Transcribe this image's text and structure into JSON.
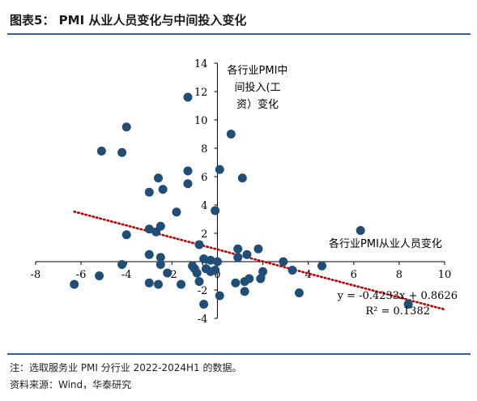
{
  "figure": {
    "title": "图表5： PMI 从业人员变化与中间投入变化"
  },
  "chart_data": {
    "type": "scatter",
    "xlim": [
      -8,
      10
    ],
    "ylim": [
      -4,
      14
    ],
    "x_ticks": [
      -8,
      -6,
      -4,
      -2,
      0,
      2,
      4,
      6,
      8,
      10
    ],
    "y_ticks": [
      -4,
      -2,
      0,
      2,
      4,
      6,
      8,
      10,
      12,
      14
    ],
    "grid": false,
    "ylabel": "各行业PMI中间投入(工资）变化",
    "ylabel_lines": [
      "各行业PMI中",
      "间投入(工",
      "资）变化"
    ],
    "xlabel": "各行业PMI从业人员变化",
    "colors": {
      "points": "#1f4e79",
      "trend": "#c00000"
    },
    "trendline": {
      "slope": -0.4233,
      "intercept": 0.8626,
      "x_range": [
        -6.3,
        10
      ]
    },
    "annotations": {
      "equation": "y = -0.4233x + 0.8626",
      "r_squared": "R² = 0.1382"
    },
    "points": [
      [
        -6.3,
        -1.6
      ],
      [
        -5.2,
        -1.0
      ],
      [
        -5.1,
        7.8
      ],
      [
        -4.2,
        7.7
      ],
      [
        -4.0,
        9.5
      ],
      [
        -4.2,
        -0.2
      ],
      [
        -4.0,
        1.9
      ],
      [
        -3.0,
        2.3
      ],
      [
        -3.0,
        4.9
      ],
      [
        -2.6,
        5.9
      ],
      [
        -2.4,
        5.1
      ],
      [
        -2.5,
        2.5
      ],
      [
        -2.7,
        2.1
      ],
      [
        -3.0,
        0.5
      ],
      [
        -2.5,
        0.3
      ],
      [
        -2.5,
        -0.2
      ],
      [
        -3.0,
        -1.5
      ],
      [
        -2.6,
        -1.6
      ],
      [
        -2.2,
        -0.8
      ],
      [
        -1.8,
        3.5
      ],
      [
        -1.3,
        11.6
      ],
      [
        -1.3,
        6.4
      ],
      [
        -1.3,
        5.5
      ],
      [
        -0.8,
        1.2
      ],
      [
        -0.6,
        0.2
      ],
      [
        -0.3,
        0.1
      ],
      [
        -1.6,
        -1.6
      ],
      [
        -1.1,
        -0.3
      ],
      [
        -1.0,
        -0.5
      ],
      [
        -0.9,
        -0.8
      ],
      [
        -0.8,
        -1.4
      ],
      [
        -0.6,
        -3.0
      ],
      [
        -0.5,
        -0.5
      ],
      [
        -0.3,
        -0.7
      ],
      [
        -0.1,
        -0.6
      ],
      [
        0.0,
        0.0
      ],
      [
        -0.1,
        3.6
      ],
      [
        0.1,
        6.5
      ],
      [
        0.6,
        9.0
      ],
      [
        0.1,
        -2.4
      ],
      [
        0.8,
        -1.5
      ],
      [
        1.1,
        5.9
      ],
      [
        0.9,
        0.9
      ],
      [
        0.9,
        0.3
      ],
      [
        1.2,
        -1.4
      ],
      [
        1.4,
        -1.2
      ],
      [
        1.2,
        -2.1
      ],
      [
        1.3,
        0.5
      ],
      [
        1.8,
        0.9
      ],
      [
        1.9,
        -1.2
      ],
      [
        2.0,
        -0.7
      ],
      [
        2.9,
        0.0
      ],
      [
        3.3,
        -0.6
      ],
      [
        3.6,
        -2.2
      ],
      [
        4.6,
        -0.3
      ],
      [
        6.3,
        2.2
      ],
      [
        8.4,
        -3.0
      ]
    ]
  },
  "footer": {
    "note": "注：选取服务业 PMI 分行业 2022-2024H1 的数据。",
    "source": "资料来源：Wind，华泰研究"
  }
}
